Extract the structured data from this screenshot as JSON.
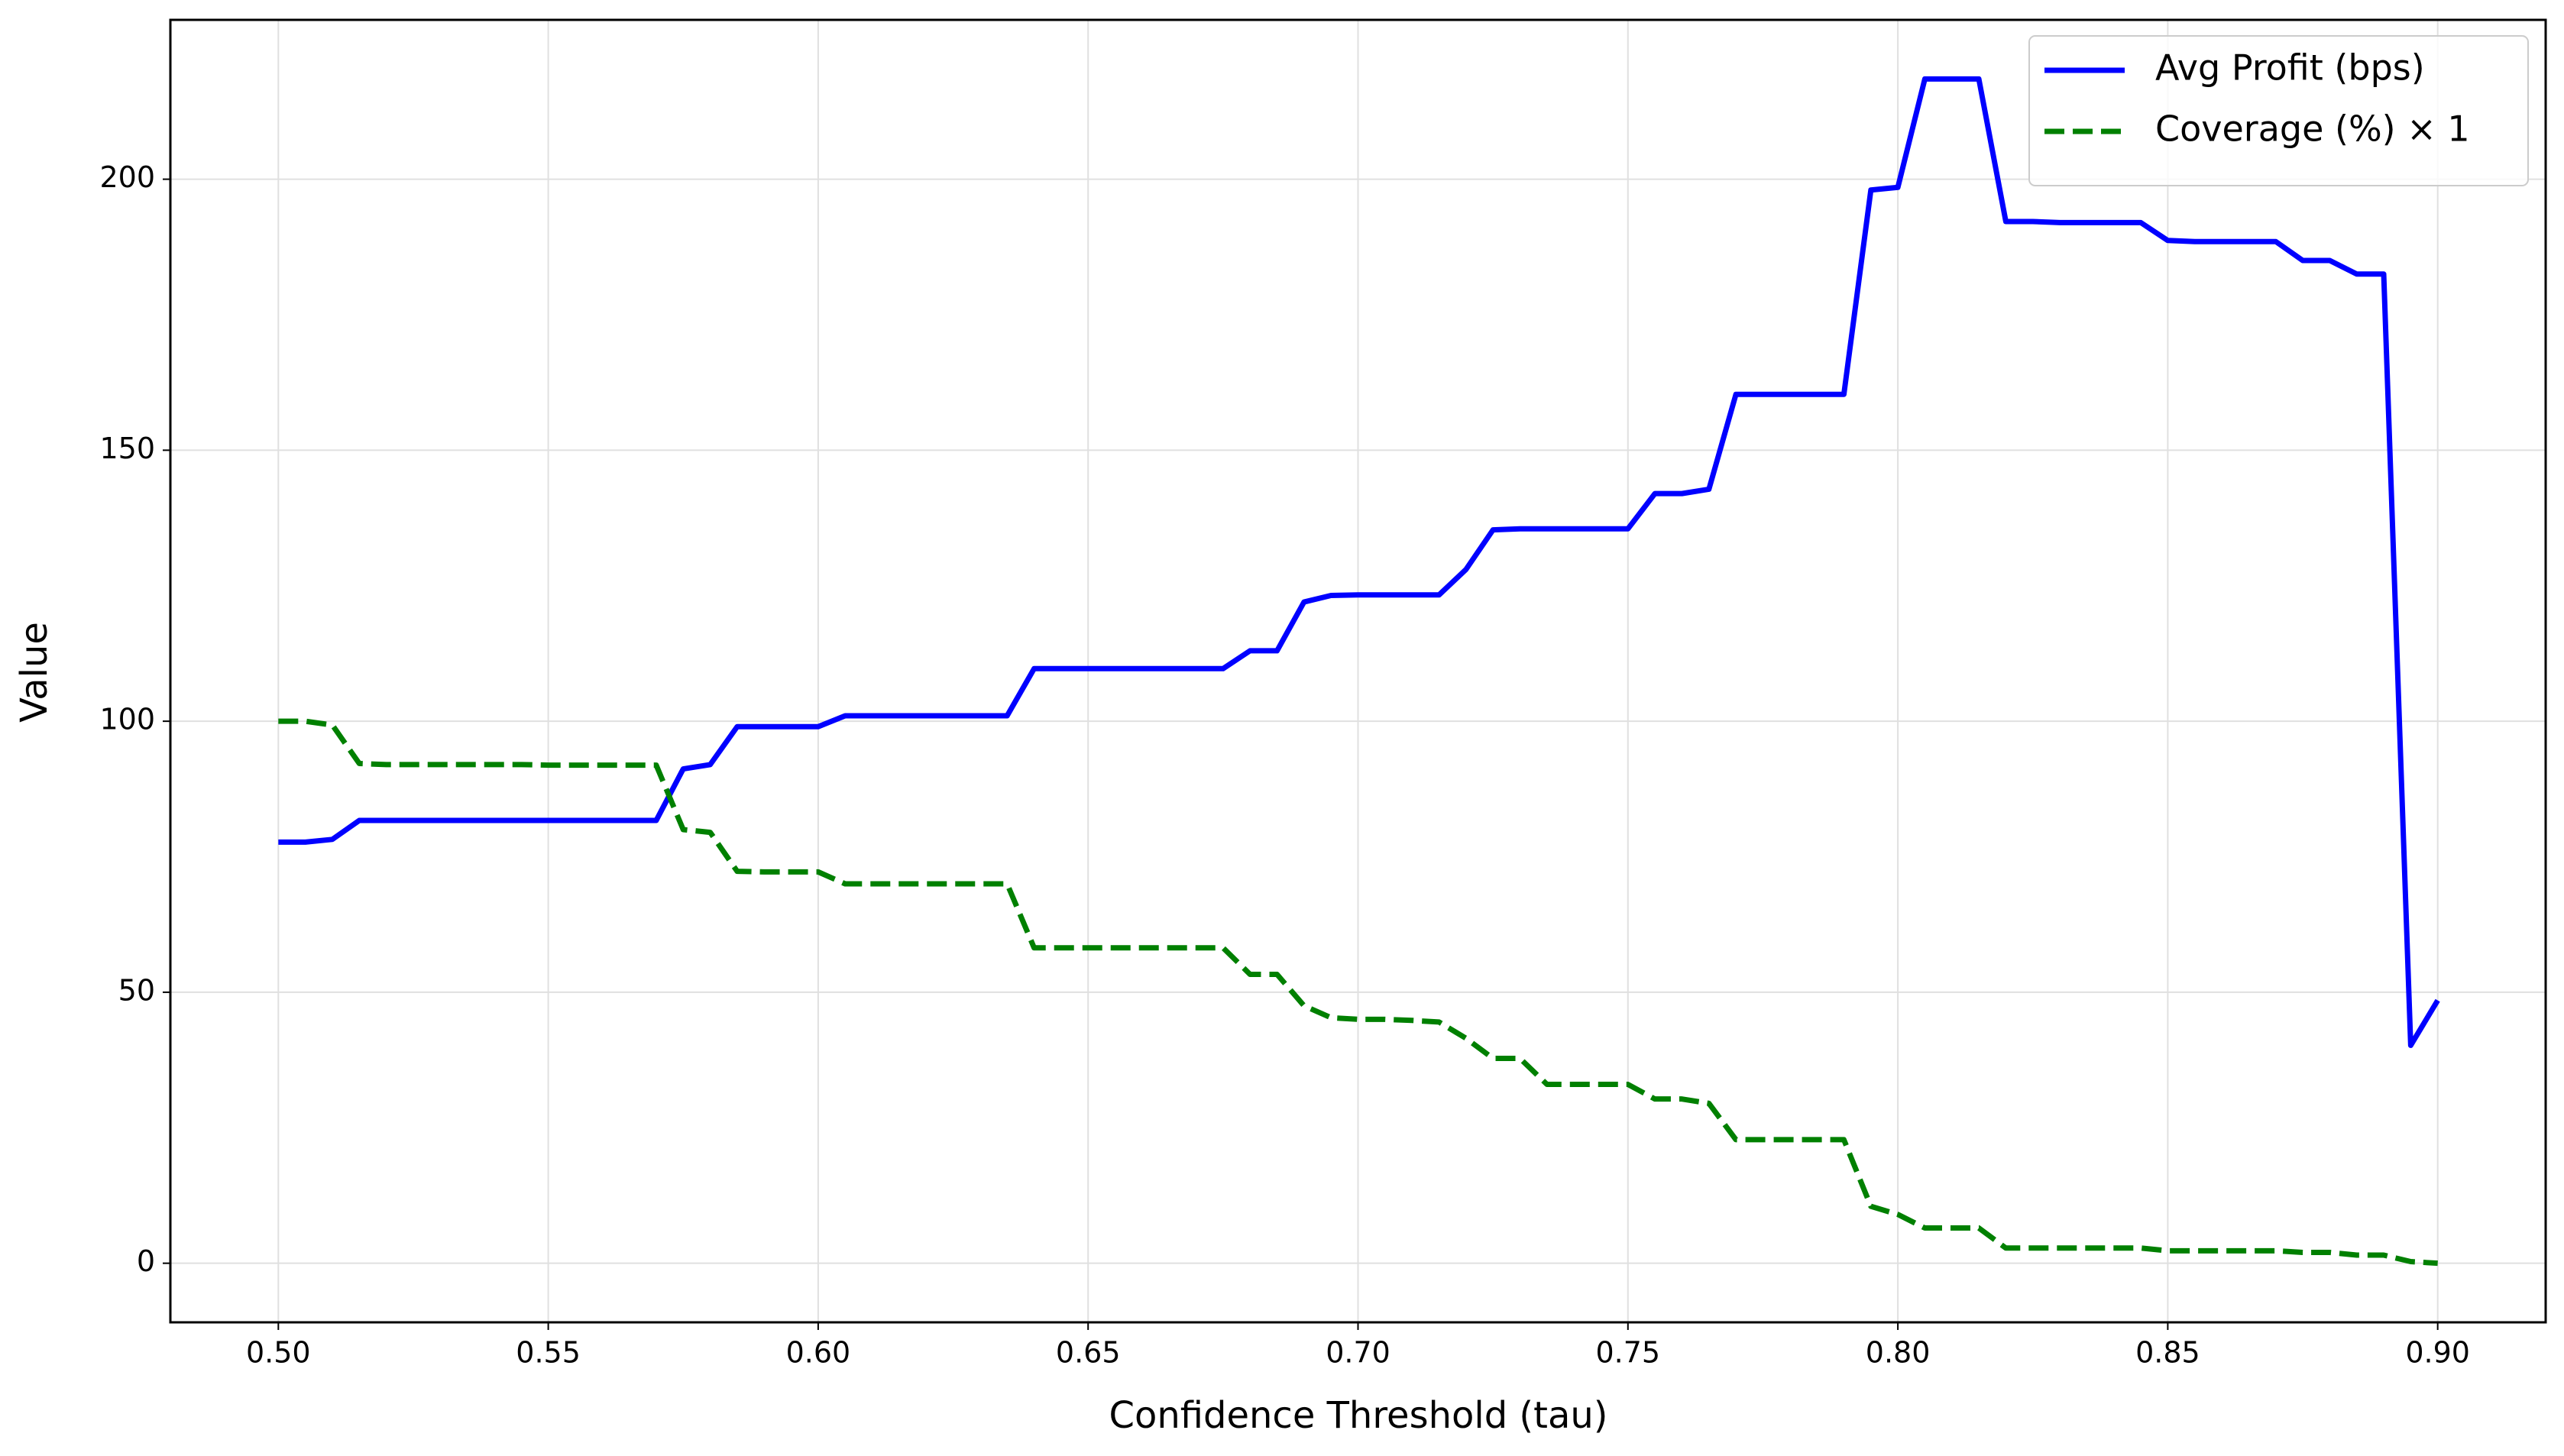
{
  "chart_data": {
    "type": "line",
    "xlabel": "Confidence Threshold (tau)",
    "ylabel": "Value",
    "x": [
      0.5,
      0.505,
      0.51,
      0.515,
      0.52,
      0.525,
      0.53,
      0.535,
      0.54,
      0.545,
      0.55,
      0.555,
      0.56,
      0.565,
      0.57,
      0.575,
      0.58,
      0.585,
      0.59,
      0.595,
      0.6,
      0.605,
      0.61,
      0.615,
      0.62,
      0.625,
      0.63,
      0.635,
      0.64,
      0.645,
      0.65,
      0.655,
      0.66,
      0.665,
      0.67,
      0.675,
      0.68,
      0.685,
      0.69,
      0.695,
      0.7,
      0.705,
      0.71,
      0.715,
      0.72,
      0.725,
      0.73,
      0.735,
      0.74,
      0.745,
      0.75,
      0.755,
      0.76,
      0.765,
      0.77,
      0.775,
      0.78,
      0.785,
      0.79,
      0.795,
      0.8,
      0.805,
      0.81,
      0.815,
      0.82,
      0.825,
      0.83,
      0.835,
      0.84,
      0.845,
      0.85,
      0.855,
      0.86,
      0.865,
      0.87,
      0.875,
      0.88,
      0.885,
      0.89,
      0.895,
      0.9
    ],
    "series": [
      {
        "name": "Avg Profit (bps)",
        "color": "#0000ff",
        "dash": "solid",
        "values": [
          77.7,
          77.7,
          78.2,
          81.7,
          81.7,
          81.7,
          81.7,
          81.7,
          81.7,
          81.7,
          81.7,
          81.7,
          81.7,
          81.7,
          81.7,
          91.2,
          92,
          99,
          99,
          99,
          99,
          101,
          101,
          101,
          101,
          101,
          101,
          101,
          109.7,
          109.7,
          109.7,
          109.7,
          109.7,
          109.7,
          109.7,
          109.7,
          113,
          113,
          122,
          123.2,
          123.3,
          123.3,
          123.3,
          123.3,
          128,
          135.3,
          135.5,
          135.5,
          135.5,
          135.5,
          135.5,
          142,
          142,
          142.8,
          160.3,
          160.3,
          160.3,
          160.3,
          160.3,
          198,
          198.5,
          218.5,
          218.5,
          218.5,
          192.2,
          192.2,
          192,
          192,
          192,
          192,
          188.7,
          188.5,
          188.5,
          188.5,
          188.5,
          185,
          185,
          182.5,
          182.5,
          40.2,
          48.5
        ]
      },
      {
        "name": "Coverage (%) × 1",
        "color": "#008000",
        "dash": "dashed",
        "values": [
          100,
          100,
          99.3,
          92.2,
          92,
          92,
          92,
          92,
          92,
          92,
          91.9,
          91.9,
          91.9,
          91.9,
          91.9,
          80,
          79.5,
          72.3,
          72.2,
          72.2,
          72.2,
          70,
          70,
          70,
          70,
          70,
          70,
          70,
          58.2,
          58.2,
          58.2,
          58.2,
          58.2,
          58.2,
          58.2,
          58.2,
          53.3,
          53.3,
          47.5,
          45.3,
          45,
          45,
          44.8,
          44.5,
          41.5,
          37.8,
          37.8,
          33,
          33,
          33,
          33,
          30.3,
          30.3,
          29.5,
          22.8,
          22.8,
          22.8,
          22.8,
          22.8,
          10.5,
          9,
          6.5,
          6.5,
          6.5,
          2.8,
          2.8,
          2.8,
          2.8,
          2.8,
          2.8,
          2.3,
          2.3,
          2.3,
          2.3,
          2.3,
          2,
          2,
          1.5,
          1.5,
          0.3,
          0
        ]
      }
    ],
    "xlim": [
      0.48,
      0.92
    ],
    "ylim": [
      -10.9,
      229.4
    ],
    "xticks": [
      {
        "value": 0.5,
        "label": "0.50"
      },
      {
        "value": 0.55,
        "label": "0.55"
      },
      {
        "value": 0.6,
        "label": "0.60"
      },
      {
        "value": 0.65,
        "label": "0.65"
      },
      {
        "value": 0.7,
        "label": "0.70"
      },
      {
        "value": 0.75,
        "label": "0.75"
      },
      {
        "value": 0.8,
        "label": "0.80"
      },
      {
        "value": 0.85,
        "label": "0.85"
      },
      {
        "value": 0.9,
        "label": "0.90"
      }
    ],
    "yticks": [
      0,
      50,
      100,
      150,
      200
    ],
    "grid": true,
    "legend": "upper right"
  }
}
